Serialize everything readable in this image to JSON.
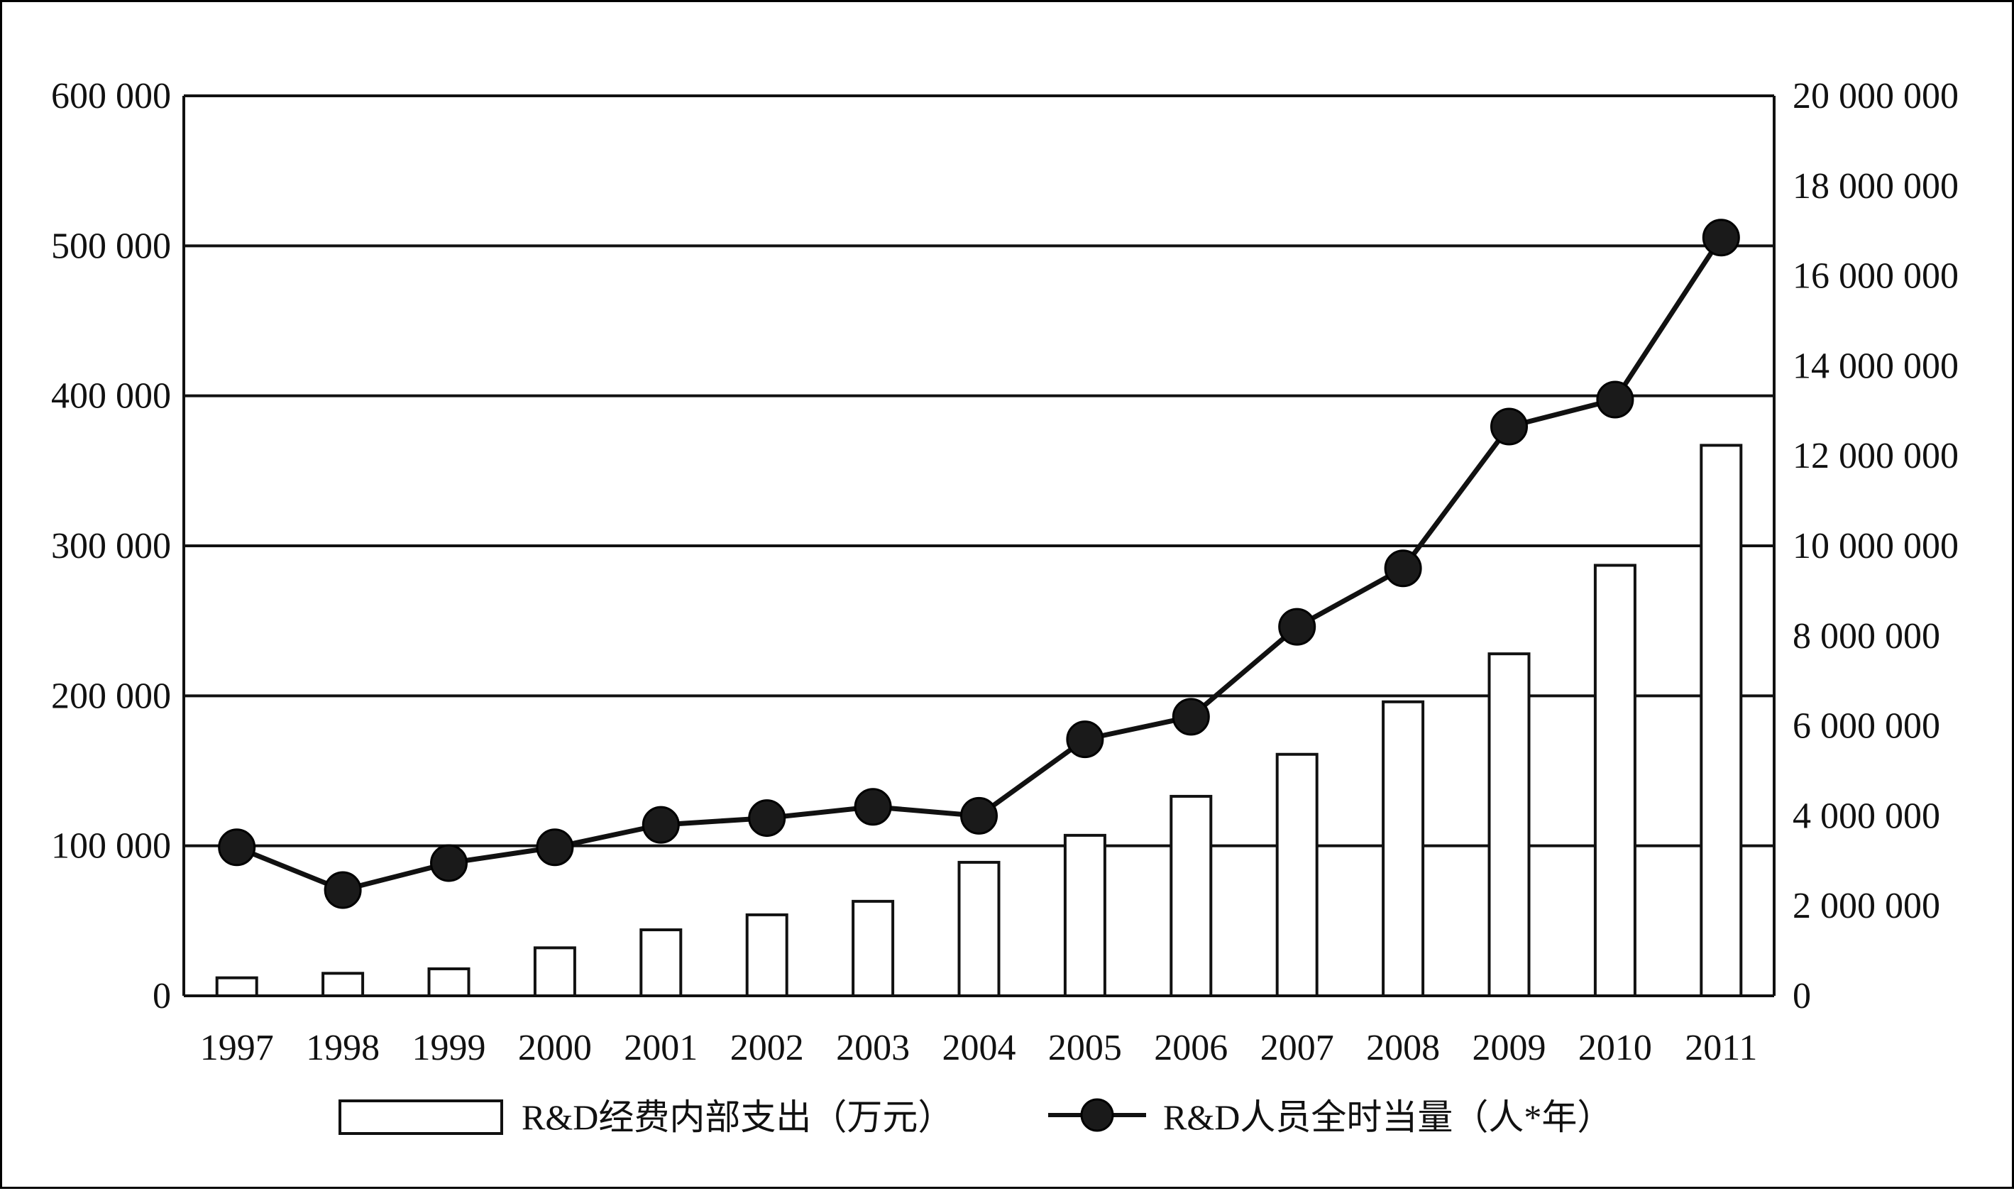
{
  "chart_data": {
    "type": "bar",
    "title": "",
    "xlabel": "",
    "ylabel": "",
    "categories": [
      "1997",
      "1998",
      "1999",
      "2000",
      "2001",
      "2002",
      "2003",
      "2004",
      "2005",
      "2006",
      "2007",
      "2008",
      "2009",
      "2010",
      "2011"
    ],
    "series": [
      {
        "name": "R&D经费内部支出（万元）",
        "type": "bar",
        "axis": "left",
        "values": [
          12000,
          15000,
          18000,
          32000,
          44000,
          54000,
          63000,
          89000,
          107000,
          133000,
          161000,
          196000,
          228000,
          287000,
          367000
        ]
      },
      {
        "name": "R&D人员全时当量（人*年）",
        "type": "line",
        "axis": "right",
        "values": [
          3300000,
          2350000,
          2950000,
          3300000,
          3800000,
          3950000,
          4200000,
          4000000,
          5700000,
          6200000,
          8200000,
          9500000,
          12650000,
          13250000,
          16850000
        ]
      }
    ],
    "ylim": [
      0,
      600000
    ],
    "y2lim": [
      0,
      20000000
    ],
    "yticks": [
      "0",
      "100 000",
      "200 000",
      "300 000",
      "400 000",
      "500 000",
      "600 000"
    ],
    "y2ticks": [
      "0",
      "2 000 000",
      "4 000 000",
      "6 000 000",
      "8 000 000",
      "10 000 000",
      "12 000 000",
      "14 000 000",
      "16 000 000",
      "18 000 000",
      "20 000 000"
    ],
    "grid": true,
    "legend": "bottom",
    "colors": {
      "bar_fill": "#ffffff",
      "bar_stroke": "#111111",
      "line": "#111111",
      "marker": "#1a1a1a",
      "grid": "#111111"
    }
  }
}
